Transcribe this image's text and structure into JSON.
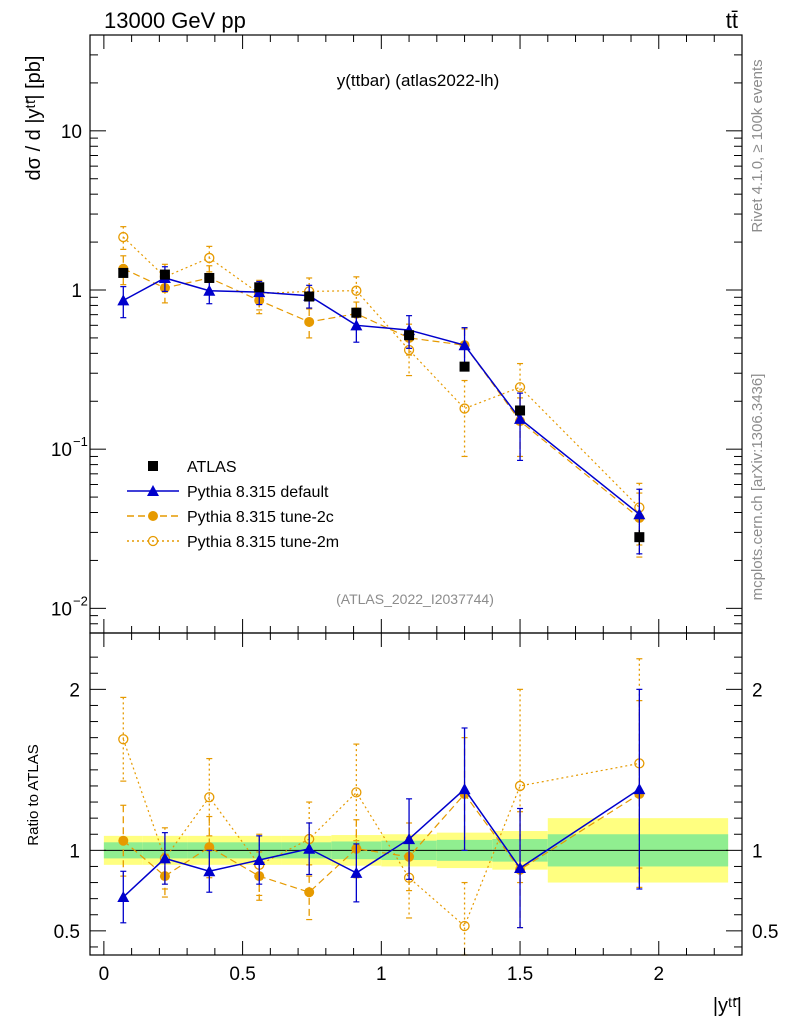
{
  "colors": {
    "data": "#000000",
    "default": "#0000cc",
    "tune2c": "#e69a00",
    "tune2m": "#e69a00",
    "band_inner": "#90ee90",
    "band_outer": "#ffff80",
    "watermark": "#8c8c8c"
  },
  "header": {
    "energy": "13000 GeV pp",
    "process": "tt̄"
  },
  "side_text": {
    "rivet": "Rivet 4.1.0, ≥ 100k events",
    "mcplots": "mcplots.cern.ch [arXiv:1306.3436]"
  },
  "chart_data": {
    "type": "scatter",
    "title": "y(ttbar) (atlas2022-lh)",
    "analysis_id": "(ATLAS_2022_I2037744)",
    "xlabel": "|yᵗᵗ̄|",
    "ylabel": "dσ / d |yᵗᵗ̄| [pb]",
    "ratio_ylabel": "Ratio to ATLAS",
    "xlim": [
      -0.05,
      2.3
    ],
    "ylim": [
      0.007,
      40
    ],
    "ratio_ylim": [
      0.35,
      2.35
    ],
    "x_ticks": [
      0,
      0.5,
      1,
      1.5,
      2
    ],
    "x_tick_labels": [
      "0",
      "0.5",
      "1",
      "1.5",
      "2"
    ],
    "y_ticks": [
      {
        "value": 10,
        "base": "10",
        "exp": ""
      },
      {
        "value": 1,
        "base": "1",
        "exp": ""
      },
      {
        "value": 0.1,
        "base": "10",
        "exp": "−1"
      },
      {
        "value": 0.01,
        "base": "10",
        "exp": "−2"
      }
    ],
    "ratio_ticks": [
      {
        "value": 2,
        "label": "2"
      },
      {
        "value": 1,
        "label": "1"
      },
      {
        "value": 0.5,
        "label": "0.5"
      }
    ],
    "bins": [
      [
        0.0,
        0.14
      ],
      [
        0.14,
        0.3
      ],
      [
        0.3,
        0.46
      ],
      [
        0.46,
        0.64
      ],
      [
        0.64,
        0.82
      ],
      [
        0.82,
        1.0
      ],
      [
        1.0,
        1.2
      ],
      [
        1.2,
        1.4
      ],
      [
        1.4,
        1.6
      ],
      [
        1.6,
        2.25
      ]
    ],
    "x": [
      0.07,
      0.22,
      0.38,
      0.56,
      0.74,
      0.91,
      1.1,
      1.3,
      1.5,
      1.93
    ],
    "band_inner": [
      0.05,
      0.05,
      0.05,
      0.05,
      0.05,
      0.055,
      0.06,
      0.065,
      0.07,
      0.1
    ],
    "band_outer": [
      0.09,
      0.09,
      0.09,
      0.09,
      0.09,
      0.095,
      0.1,
      0.11,
      0.12,
      0.2
    ],
    "legend": [
      {
        "key": "data",
        "label": "ATLAS",
        "marker": "square",
        "line": "none"
      },
      {
        "key": "default",
        "label": "Pythia 8.315 default",
        "marker": "triangle",
        "line": "solid"
      },
      {
        "key": "tune2c",
        "label": "Pythia 8.315 tune-2c",
        "marker": "circle",
        "line": "dashed"
      },
      {
        "key": "tune2m",
        "label": "Pythia 8.315 tune-2m",
        "marker": "open-circle",
        "line": "dotted"
      }
    ],
    "series": [
      {
        "key": "data",
        "name": "ATLAS",
        "values": [
          1.28,
          1.25,
          1.19,
          1.04,
          0.91,
          0.72,
          0.52,
          0.33,
          0.175,
          0.028
        ],
        "errors": [
          0.05,
          0.05,
          0.05,
          0.04,
          0.04,
          0.03,
          0.02,
          0.015,
          0.01,
          0.003
        ]
      },
      {
        "key": "default",
        "name": "Pythia 8.315 default",
        "values": [
          0.86,
          1.19,
          0.99,
          0.97,
          0.92,
          0.6,
          0.56,
          0.45,
          0.155,
          0.039
        ],
        "errors": [
          0.19,
          0.21,
          0.17,
          0.16,
          0.15,
          0.13,
          0.13,
          0.13,
          0.07,
          0.017
        ]
      },
      {
        "key": "tune2c",
        "name": "Pythia 8.315 tune-2c",
        "values": [
          1.36,
          1.03,
          1.19,
          0.86,
          0.63,
          0.71,
          0.5,
          0.45,
          0.15,
          0.037
        ],
        "errors": [
          0.28,
          0.2,
          0.23,
          0.15,
          0.13,
          0.13,
          0.11,
          0.12,
          0.06,
          0.016
        ]
      },
      {
        "key": "tune2m",
        "name": "Pythia 8.315 tune-2m",
        "values": [
          2.15,
          1.21,
          1.59,
          0.95,
          0.98,
          0.99,
          0.42,
          0.18,
          0.245,
          0.043
        ],
        "errors": [
          0.35,
          0.24,
          0.29,
          0.2,
          0.21,
          0.22,
          0.13,
          0.09,
          0.1,
          0.018
        ]
      }
    ],
    "ratio_series": [
      {
        "key": "default",
        "values": [
          0.71,
          0.95,
          0.87,
          0.94,
          1.01,
          0.86,
          1.07,
          1.38,
          0.89,
          1.38
        ],
        "errors": [
          0.16,
          0.16,
          0.13,
          0.15,
          0.16,
          0.18,
          0.25,
          0.38,
          0.37,
          0.62
        ]
      },
      {
        "key": "tune2c",
        "values": [
          1.06,
          0.84,
          1.02,
          0.84,
          0.74,
          1.01,
          0.96,
          1.35,
          0.88,
          1.35
        ],
        "errors": [
          0.22,
          0.13,
          0.19,
          0.15,
          0.17,
          0.18,
          0.21,
          0.35,
          0.36,
          0.58
        ]
      },
      {
        "key": "tune2m",
        "values": [
          1.69,
          0.95,
          1.33,
          0.91,
          1.07,
          1.36,
          0.83,
          0.53,
          1.4,
          1.54
        ],
        "errors": [
          0.26,
          0.19,
          0.24,
          0.19,
          0.23,
          0.3,
          0.25,
          0.27,
          0.6,
          0.65
        ]
      }
    ]
  }
}
